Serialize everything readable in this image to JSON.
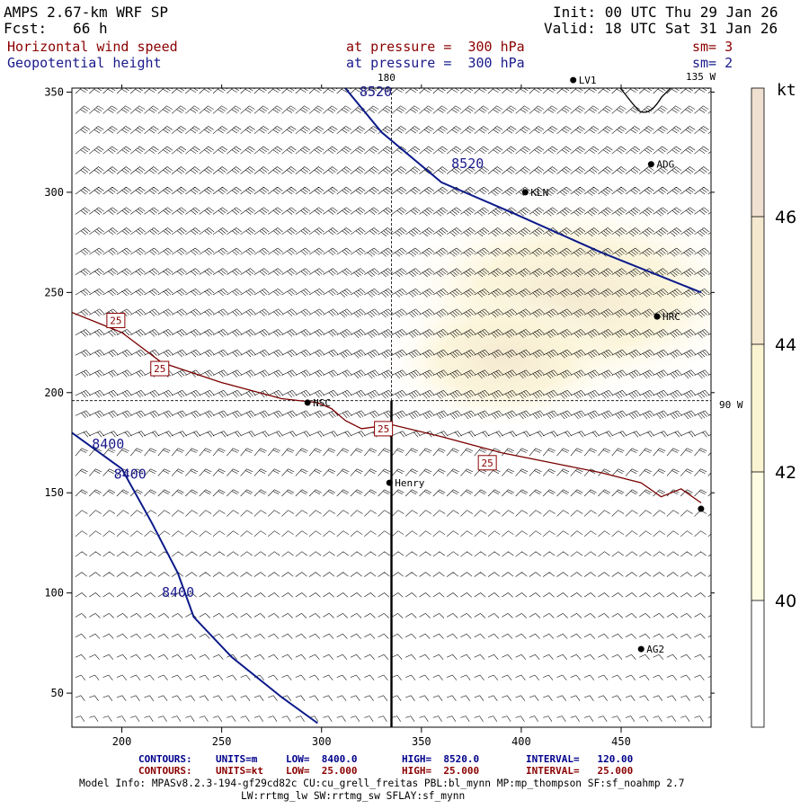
{
  "header": {
    "model": "AMPS 2.67-km WRF SP",
    "forecast": "Fcst:   66 h",
    "init": "Init: 00 UTC Thu 29 Jan 26",
    "valid": "Valid: 18 UTC Sat 31 Jan 26",
    "field1_name": "Horizontal wind speed",
    "field1_level": "at pressure =  300 hPa",
    "field1_sm": "sm= 3",
    "field2_name": "Geopotential height",
    "field2_level": "at pressure =  300 hPa",
    "field2_sm": "sm= 2"
  },
  "map_labels": {
    "lon_180": "180",
    "lon_135w": "135 W",
    "lon_90w": "90 W",
    "stations": [
      {
        "id": "ADG",
        "x": 465,
        "y": 314
      },
      {
        "id": "KLN",
        "x": 402,
        "y": 300
      },
      {
        "id": "HRC",
        "x": 468,
        "y": 238
      },
      {
        "id": "NSC",
        "x": 293,
        "y": 195
      },
      {
        "id": "Henry",
        "x": 334,
        "y": 155
      },
      {
        "id": "AG2",
        "x": 460,
        "y": 72
      },
      {
        "id": "LV1",
        "x": 426,
        "y": 356
      },
      {
        "id": "",
        "x": 490,
        "y": 142
      }
    ]
  },
  "legend": {
    "unit": "kt",
    "colors": [
      "#fffce4",
      "#fbf4d2",
      "#f4e8cf",
      "#efe0d2",
      "#ebdbd4"
    ],
    "levels": [
      40,
      42,
      44,
      46
    ]
  },
  "footer": {
    "row1": {
      "label": "CONTOURS:",
      "units": "UNITS=m",
      "low": "LOW=  8400.0",
      "high": "HIGH=  8520.0",
      "interval": "INTERVAL=   120.00"
    },
    "row2": {
      "label": "CONTOURS:",
      "units": "UNITS=kt",
      "low": "LOW=  25.000",
      "high": "HIGH=  25.000",
      "interval": "INTERVAL=   25.000"
    },
    "model_info": "Model Info: MPASv8.2.3-194-gf29cd82c CU:cu_grell_freitas PBL:bl_mynn MP:mp_thompson SF:sf_noahmp 2.7",
    "model_info2": "LW:rrtmg_lw SW:rrtmg_sw SFLAY:sf_mynn"
  },
  "chart_data": {
    "type": "contour",
    "title": "Horizontal wind speed / Geopotential height at 300 hPa",
    "xlim": [
      175,
      495
    ],
    "ylim": [
      33,
      352
    ],
    "xticks": [
      200,
      250,
      300,
      350,
      400,
      450
    ],
    "yticks": [
      50,
      100,
      150,
      200,
      250,
      300,
      350
    ],
    "fill_levels_kt": [
      40,
      42,
      44,
      46
    ],
    "height_contours_m": [
      {
        "level": 8520,
        "labels": [
          "8520",
          "8520"
        ],
        "points": [
          [
            311,
            353
          ],
          [
            330,
            330
          ],
          [
            360,
            305
          ],
          [
            395,
            290
          ],
          [
            440,
            270
          ],
          [
            490,
            250
          ]
        ]
      },
      {
        "level": 8400,
        "labels": [
          "8400",
          "8400",
          "8400"
        ],
        "points": [
          [
            175,
            180
          ],
          [
            200,
            162
          ],
          [
            215,
            135
          ],
          [
            228,
            110
          ],
          [
            236,
            88
          ],
          [
            255,
            68
          ],
          [
            280,
            48
          ],
          [
            298,
            35
          ]
        ]
      }
    ],
    "wind_contours_kt": [
      {
        "level": 25,
        "labels": [
          "25",
          "25",
          "25",
          "25"
        ],
        "points": [
          [
            175,
            240
          ],
          [
            200,
            230
          ],
          [
            220,
            215
          ],
          [
            250,
            205
          ],
          [
            280,
            197
          ],
          [
            298,
            195
          ],
          [
            305,
            192
          ],
          [
            312,
            186
          ],
          [
            320,
            182
          ],
          [
            335,
            184
          ],
          [
            360,
            178
          ],
          [
            390,
            170
          ],
          [
            420,
            164
          ],
          [
            440,
            160
          ],
          [
            460,
            155
          ],
          [
            470,
            148
          ],
          [
            480,
            152
          ],
          [
            490,
            145
          ]
        ]
      }
    ],
    "cross_section_x": 335,
    "cross_section_ymax": 196,
    "ref_line_y": 196
  }
}
